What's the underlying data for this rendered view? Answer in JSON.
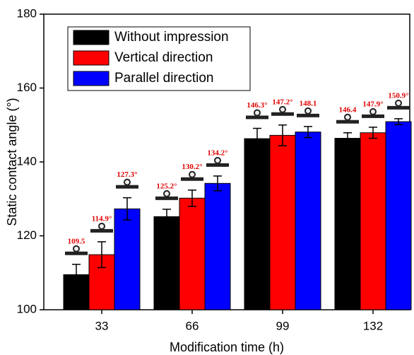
{
  "chart_data": {
    "type": "bar",
    "x_label": "Modification time (h)",
    "y_label": "Static contact angle (°)",
    "categories": [
      "33",
      "66",
      "99",
      "132"
    ],
    "series": [
      {
        "name": "Without impression",
        "color": "#000000",
        "values": [
          109.5,
          125.2,
          146.3,
          146.4
        ],
        "errors": [
          2.8,
          2.0,
          2.8,
          1.5
        ],
        "value_labels": [
          "109.5",
          "125.2°",
          "146.3°",
          "146.4"
        ]
      },
      {
        "name": "Vertical direction",
        "color": "#ff0000",
        "values": [
          114.9,
          130.2,
          147.2,
          147.9
        ],
        "errors": [
          3.5,
          2.2,
          2.8,
          1.5
        ],
        "value_labels": [
          "114.9°",
          "130.2°",
          "147.2°",
          "147.9°"
        ]
      },
      {
        "name": "Parallel direction",
        "color": "#0000ff",
        "values": [
          127.3,
          134.2,
          148.1,
          150.9
        ],
        "errors": [
          3.0,
          2.0,
          1.5,
          0.8
        ],
        "value_labels": [
          "127.3°",
          "134.2°",
          "148.1",
          "150.9°"
        ]
      }
    ],
    "ylim": [
      100,
      180
    ],
    "yticks": [
      100,
      120,
      140,
      160,
      180
    ]
  }
}
